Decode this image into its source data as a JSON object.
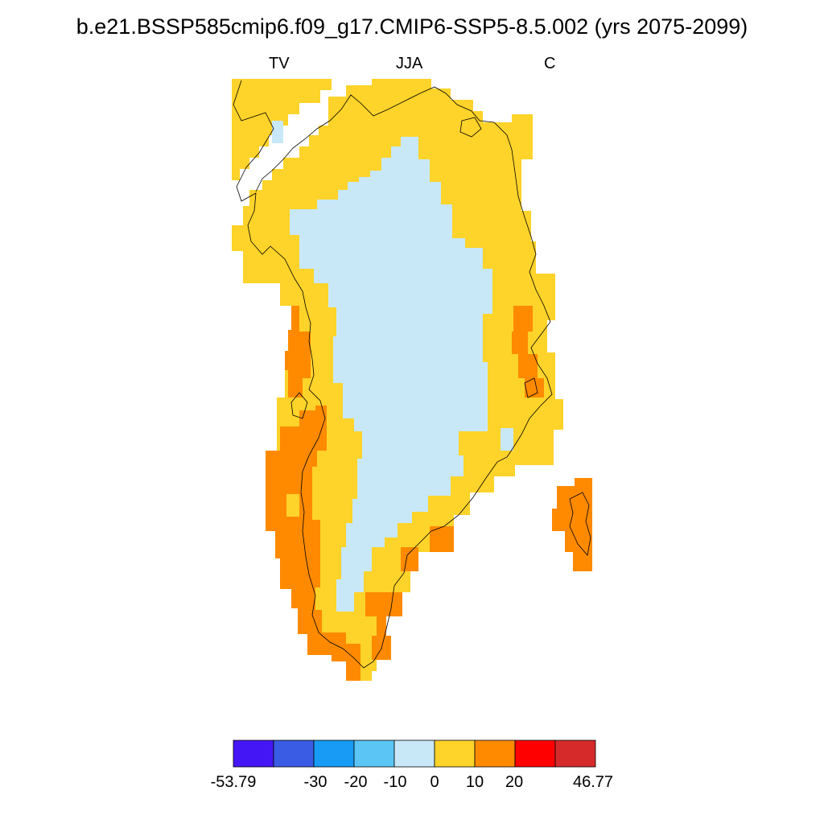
{
  "title": "b.e21.BSSP585cmip6.f09_g17.CMIP6-SSP5-8.5.002 (yrs 2075-2099)",
  "subtitles": {
    "left": "TV",
    "center": "JJA",
    "right": "C"
  },
  "colorbar": {
    "colors": [
      "#4516f5",
      "#3a5ce4",
      "#179bf5",
      "#5bc6f5",
      "#c8e8f7",
      "#fed32a",
      "#ff8a00",
      "#ff0000",
      "#d62a2a"
    ],
    "labels": [
      "-53.79",
      "-30",
      "-20",
      "-10",
      "0",
      "10",
      "20",
      "46.77"
    ]
  },
  "colors": {
    "low": "#c8e8f7",
    "mid": "#fed32a",
    "high": "#ff8a00",
    "coast": "#000000"
  }
}
